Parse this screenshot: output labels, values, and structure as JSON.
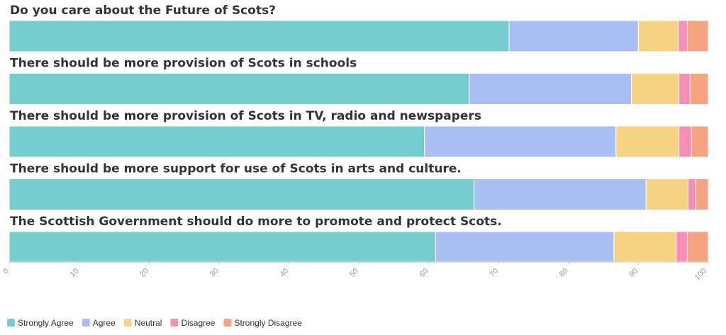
{
  "chart_data": {
    "type": "bar",
    "orientation": "horizontal",
    "stacked": true,
    "categories": [
      "Do you care about the Future of Scots?",
      "There should be more provision of Scots in schools",
      "There should be more provision of Scots in TV, radio and newspapers",
      "There should be more support for use of Scots in arts and culture.",
      "The Scottish Government should do more to promote and protect Scots."
    ],
    "series": [
      {
        "name": "Strongly Agree",
        "color": "#76cdd0",
        "values": [
          71.5,
          65.8,
          59.4,
          66.5,
          61.0
        ]
      },
      {
        "name": "Agree",
        "color": "#a9bff3",
        "values": [
          18.5,
          23.2,
          27.4,
          24.6,
          25.5
        ]
      },
      {
        "name": "Neutral",
        "color": "#f6d484",
        "values": [
          5.7,
          6.8,
          9.0,
          6.0,
          8.9
        ]
      },
      {
        "name": "Disagree",
        "color": "#f78eb5",
        "values": [
          1.3,
          1.6,
          1.8,
          1.1,
          1.6
        ]
      },
      {
        "name": "Strongly Disagree",
        "color": "#f5a482",
        "values": [
          3.0,
          2.6,
          2.4,
          1.8,
          3.0
        ]
      }
    ],
    "xlim": [
      0,
      100
    ],
    "xticks": [
      0,
      10,
      20,
      30,
      40,
      50,
      60,
      70,
      80,
      90,
      100
    ],
    "legend_position": "bottom-left",
    "grid": false
  }
}
